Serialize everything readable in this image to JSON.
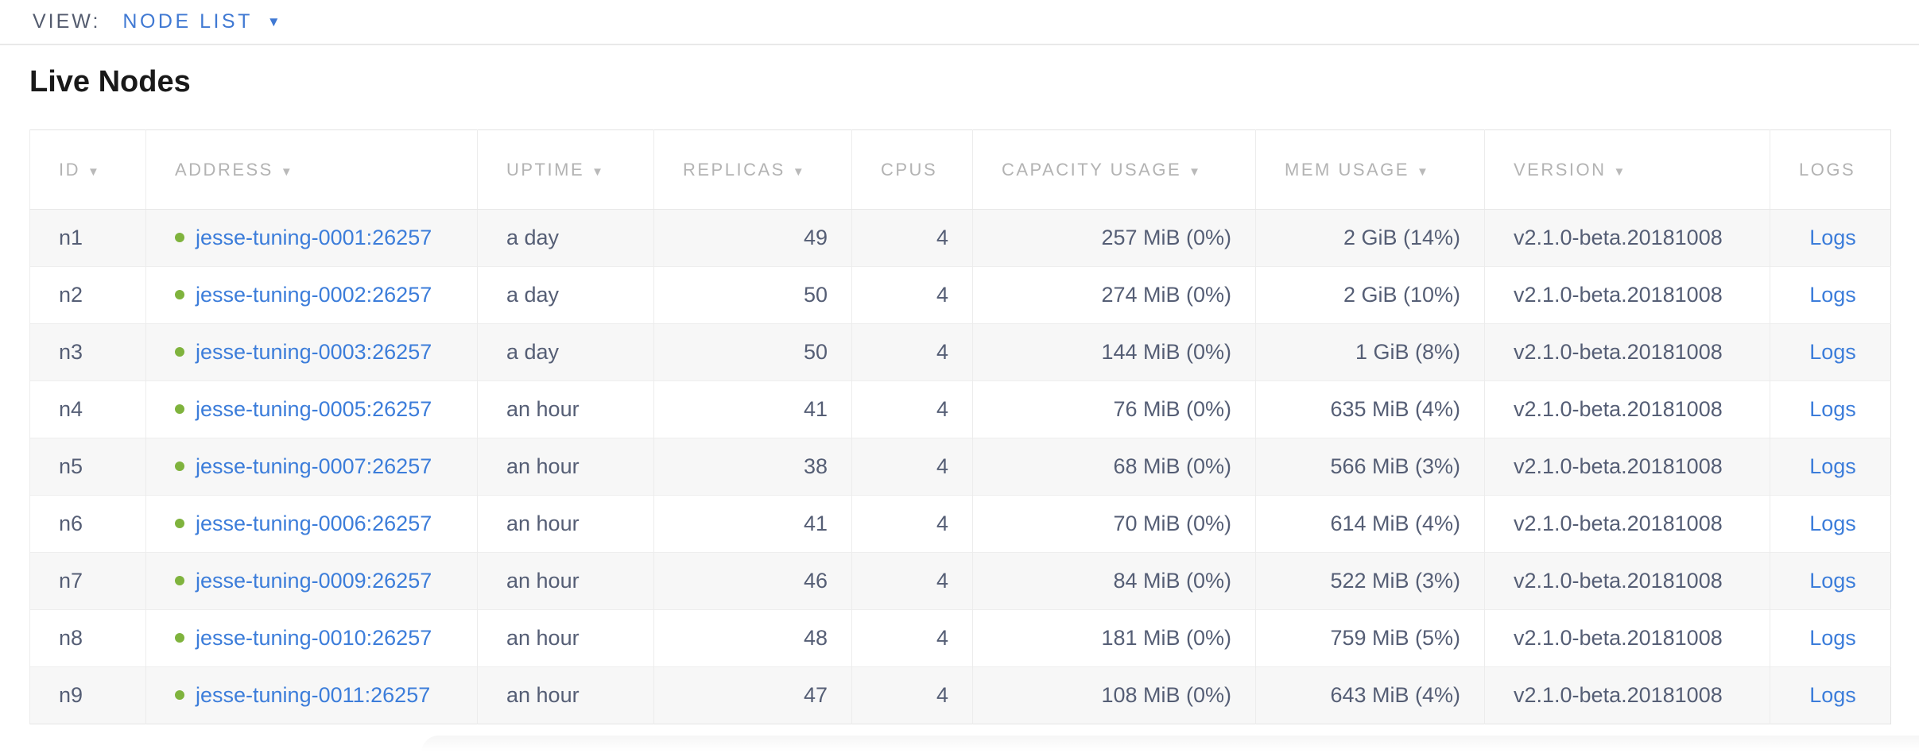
{
  "view_bar": {
    "label": "VIEW:",
    "selected": "NODE LIST",
    "caret_icon": "▼"
  },
  "title": "Live Nodes",
  "colors": {
    "accent_blue": "#3c7dda",
    "node_live_green": "#7fb33d",
    "header_gray": "#b3b3b3",
    "cell_text_slate": "#555e75",
    "row_stripe": "#f7f7f7"
  },
  "table": {
    "sort_icon": "▼",
    "logs_link_label": "Logs",
    "columns": [
      {
        "key": "id",
        "label": "ID",
        "sortable": true
      },
      {
        "key": "address",
        "label": "ADDRESS",
        "sortable": true
      },
      {
        "key": "uptime",
        "label": "UPTIME",
        "sortable": true
      },
      {
        "key": "replicas",
        "label": "REPLICAS",
        "sortable": true
      },
      {
        "key": "cpus",
        "label": "CPUS",
        "sortable": false
      },
      {
        "key": "capacity",
        "label": "CAPACITY USAGE",
        "sortable": true
      },
      {
        "key": "mem",
        "label": "MEM USAGE",
        "sortable": true
      },
      {
        "key": "version",
        "label": "VERSION",
        "sortable": true
      },
      {
        "key": "logs",
        "label": "LOGS",
        "sortable": false
      }
    ],
    "rows": [
      {
        "id": "n1",
        "address": "jesse-tuning-0001:26257",
        "uptime": "a day",
        "replicas": "49",
        "cpus": "4",
        "capacity": "257 MiB (0%)",
        "mem": "2 GiB (14%)",
        "version": "v2.1.0-beta.20181008"
      },
      {
        "id": "n2",
        "address": "jesse-tuning-0002:26257",
        "uptime": "a day",
        "replicas": "50",
        "cpus": "4",
        "capacity": "274 MiB (0%)",
        "mem": "2 GiB (10%)",
        "version": "v2.1.0-beta.20181008"
      },
      {
        "id": "n3",
        "address": "jesse-tuning-0003:26257",
        "uptime": "a day",
        "replicas": "50",
        "cpus": "4",
        "capacity": "144 MiB (0%)",
        "mem": "1 GiB (8%)",
        "version": "v2.1.0-beta.20181008"
      },
      {
        "id": "n4",
        "address": "jesse-tuning-0005:26257",
        "uptime": "an hour",
        "replicas": "41",
        "cpus": "4",
        "capacity": "76 MiB (0%)",
        "mem": "635 MiB (4%)",
        "version": "v2.1.0-beta.20181008"
      },
      {
        "id": "n5",
        "address": "jesse-tuning-0007:26257",
        "uptime": "an hour",
        "replicas": "38",
        "cpus": "4",
        "capacity": "68 MiB (0%)",
        "mem": "566 MiB (3%)",
        "version": "v2.1.0-beta.20181008"
      },
      {
        "id": "n6",
        "address": "jesse-tuning-0006:26257",
        "uptime": "an hour",
        "replicas": "41",
        "cpus": "4",
        "capacity": "70 MiB (0%)",
        "mem": "614 MiB (4%)",
        "version": "v2.1.0-beta.20181008"
      },
      {
        "id": "n7",
        "address": "jesse-tuning-0009:26257",
        "uptime": "an hour",
        "replicas": "46",
        "cpus": "4",
        "capacity": "84 MiB (0%)",
        "mem": "522 MiB (3%)",
        "version": "v2.1.0-beta.20181008"
      },
      {
        "id": "n8",
        "address": "jesse-tuning-0010:26257",
        "uptime": "an hour",
        "replicas": "48",
        "cpus": "4",
        "capacity": "181 MiB (0%)",
        "mem": "759 MiB (5%)",
        "version": "v2.1.0-beta.20181008"
      },
      {
        "id": "n9",
        "address": "jesse-tuning-0011:26257",
        "uptime": "an hour",
        "replicas": "47",
        "cpus": "4",
        "capacity": "108 MiB (0%)",
        "mem": "643 MiB (4%)",
        "version": "v2.1.0-beta.20181008"
      }
    ]
  }
}
